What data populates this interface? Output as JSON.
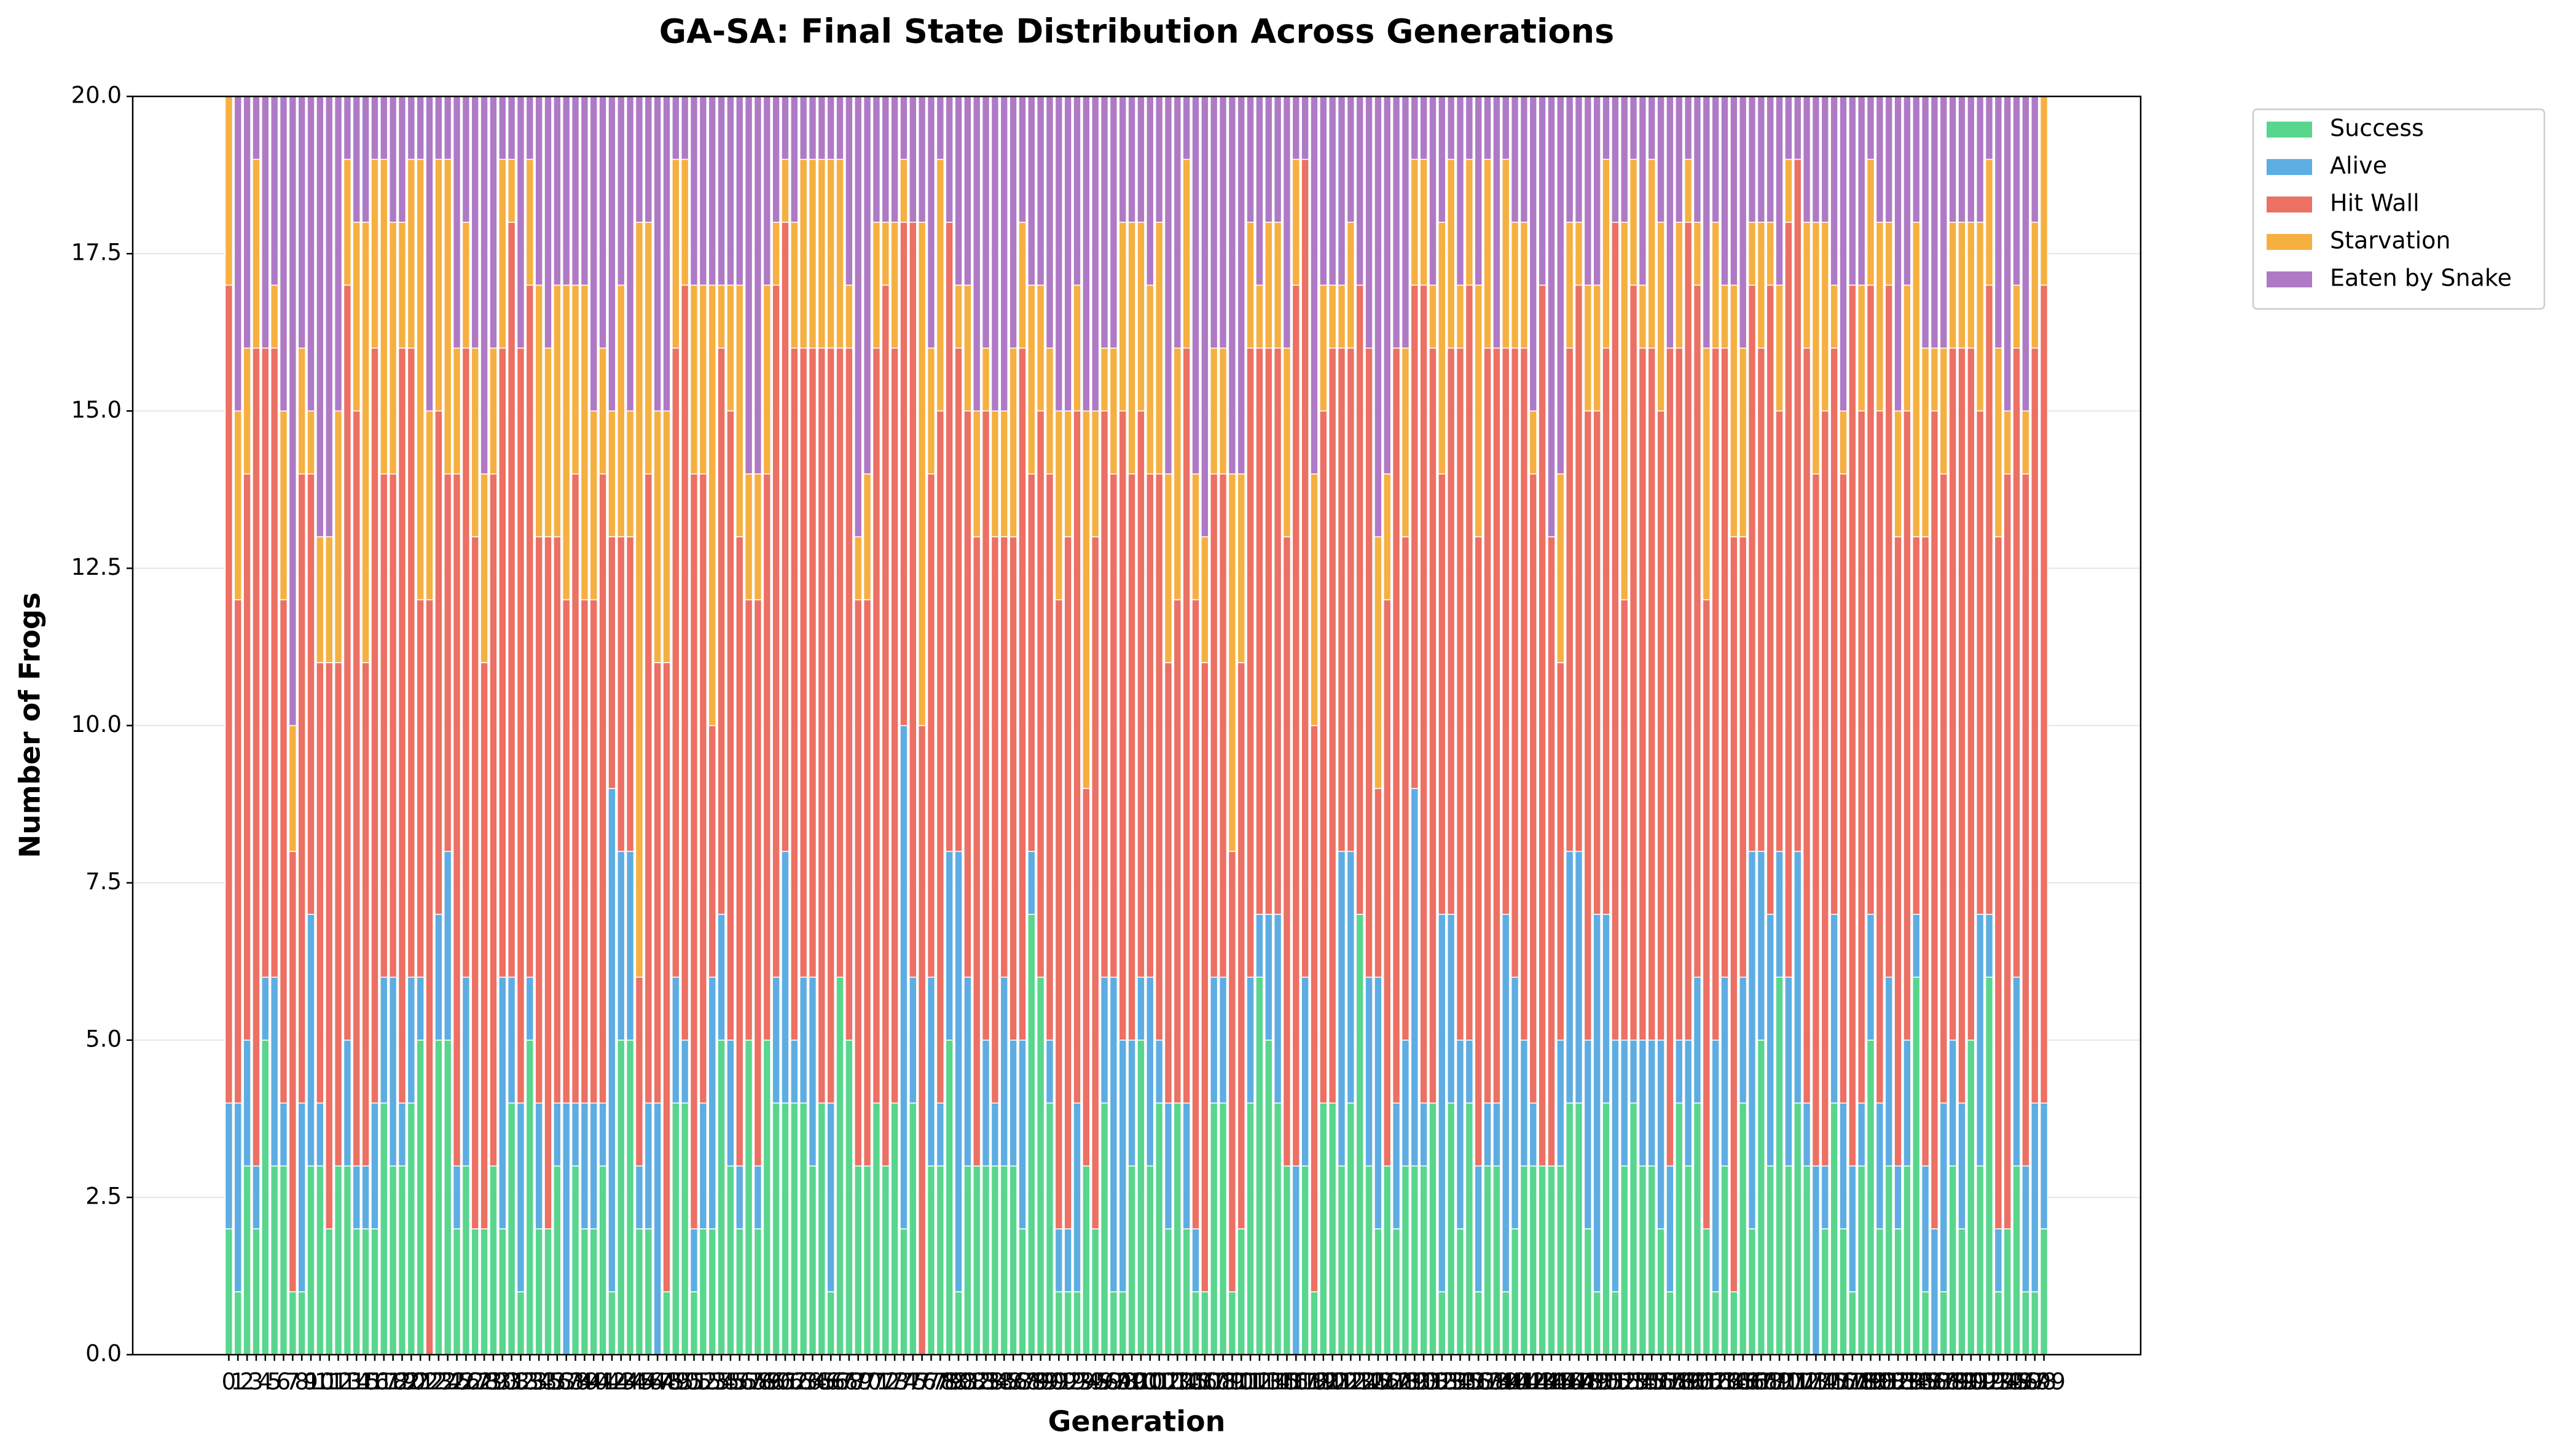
{
  "chart_data": {
    "type": "stacked_bar",
    "title": "GA-SA: Final State Distribution Across Generations",
    "x_label": "Generation",
    "y_label": "Number of Frogs",
    "categories": [
      0,
      1,
      2,
      3,
      4,
      5,
      6,
      7,
      8,
      9,
      10,
      11,
      12,
      13,
      14,
      15,
      16,
      17,
      18,
      19,
      20,
      21,
      22,
      23,
      24,
      25,
      26,
      27,
      28,
      29,
      30,
      31,
      32,
      33,
      34,
      35,
      36,
      37,
      38,
      39,
      40,
      41,
      42,
      43,
      44,
      45,
      46,
      47,
      48,
      49,
      50,
      51,
      52,
      53,
      54,
      55,
      56,
      57,
      58,
      59,
      60,
      61,
      62,
      63,
      64,
      65,
      66,
      67,
      68,
      69,
      70,
      71,
      72,
      73,
      74,
      75,
      76,
      77,
      78,
      79,
      80,
      81,
      82,
      83,
      84,
      85,
      86,
      87,
      88,
      89,
      90,
      91,
      92,
      93,
      94,
      95,
      96,
      97,
      98,
      99,
      100,
      101,
      102,
      103,
      104,
      105,
      106,
      107,
      108,
      109,
      110,
      111,
      112,
      113,
      114,
      115,
      116,
      117,
      118,
      119,
      120,
      121,
      122,
      123,
      124,
      125,
      126,
      127,
      128,
      129,
      130,
      131,
      132,
      133,
      134,
      135,
      136,
      137,
      138,
      139,
      140,
      141,
      142,
      143,
      144,
      145,
      146,
      147,
      148,
      149,
      150,
      151,
      152,
      153,
      154,
      155,
      156,
      157,
      158,
      159,
      160,
      161,
      162,
      163,
      164,
      165,
      166,
      167,
      168,
      169,
      170,
      171,
      172,
      173,
      174,
      175,
      176,
      177,
      178,
      179,
      180,
      181,
      182,
      183,
      184,
      185,
      186,
      187,
      188,
      189,
      190,
      191,
      192,
      193,
      194,
      195,
      196,
      197,
      198,
      199
    ],
    "series": [
      {
        "name": "Success",
        "color": "#58d68d",
        "values": [
          2,
          1,
          3,
          2,
          5,
          3,
          3,
          1,
          1,
          3,
          3,
          2,
          3,
          3,
          2,
          2,
          2,
          4,
          3,
          3,
          4,
          5,
          0,
          5,
          5,
          2,
          3,
          2,
          2,
          3,
          2,
          4,
          1,
          5,
          2,
          2,
          3,
          0,
          3,
          2,
          2,
          3,
          1,
          5,
          5,
          2,
          2,
          0,
          1,
          4,
          4,
          1,
          2,
          2,
          5,
          3,
          2,
          5,
          2,
          5,
          4,
          4,
          4,
          4,
          3,
          4,
          1,
          6,
          5,
          3,
          3,
          4,
          3,
          4,
          2,
          4,
          0,
          3,
          3,
          5,
          1,
          3,
          3,
          3,
          3,
          3,
          3,
          2,
          7,
          6,
          4,
          1,
          1,
          1,
          3,
          2,
          4,
          1,
          1,
          3,
          5,
          3,
          4,
          2,
          4,
          2,
          1,
          1,
          4,
          4,
          1,
          2,
          4,
          6,
          5,
          4,
          3,
          0,
          3,
          1,
          4,
          4,
          3,
          4,
          7,
          3,
          2,
          3,
          2,
          3,
          3,
          3,
          4,
          1,
          4,
          2,
          4,
          1,
          3,
          3,
          1,
          2,
          3,
          3,
          3,
          3,
          3,
          4,
          4,
          2,
          1,
          4,
          1,
          3,
          4,
          3,
          3,
          2,
          1,
          4,
          3,
          4,
          2,
          1,
          3,
          1,
          4,
          2,
          5,
          3,
          6,
          3,
          4,
          3,
          0,
          2,
          4,
          2,
          1,
          3,
          5,
          2,
          3,
          2,
          3,
          6,
          1,
          0,
          1,
          3,
          2,
          5,
          3,
          6,
          1,
          2,
          3,
          1,
          1,
          2
        ]
      },
      {
        "name": "Alive",
        "color": "#5dade2",
        "values": [
          2,
          3,
          2,
          1,
          1,
          3,
          1,
          0,
          3,
          4,
          1,
          0,
          0,
          2,
          1,
          1,
          2,
          2,
          3,
          1,
          2,
          1,
          0,
          2,
          3,
          1,
          3,
          0,
          0,
          0,
          4,
          2,
          3,
          1,
          2,
          0,
          1,
          4,
          1,
          2,
          2,
          1,
          8,
          3,
          3,
          1,
          2,
          4,
          0,
          2,
          1,
          1,
          2,
          4,
          2,
          2,
          1,
          0,
          1,
          0,
          2,
          4,
          1,
          2,
          3,
          0,
          3,
          0,
          0,
          0,
          0,
          0,
          0,
          0,
          8,
          2,
          0,
          3,
          1,
          3,
          7,
          3,
          0,
          2,
          1,
          3,
          2,
          3,
          1,
          0,
          1,
          1,
          1,
          3,
          0,
          0,
          2,
          5,
          4,
          2,
          1,
          3,
          1,
          2,
          0,
          2,
          1,
          0,
          2,
          2,
          0,
          0,
          2,
          1,
          2,
          3,
          0,
          3,
          3,
          0,
          0,
          0,
          5,
          4,
          0,
          3,
          4,
          0,
          2,
          2,
          6,
          1,
          0,
          6,
          3,
          3,
          1,
          2,
          1,
          1,
          6,
          4,
          2,
          1,
          0,
          0,
          2,
          4,
          4,
          3,
          6,
          3,
          4,
          2,
          1,
          2,
          2,
          3,
          2,
          1,
          2,
          2,
          0,
          4,
          3,
          0,
          2,
          6,
          3,
          4,
          2,
          3,
          4,
          1,
          3,
          1,
          3,
          2,
          2,
          1,
          2,
          2,
          3,
          1,
          2,
          1,
          2,
          2,
          3,
          2,
          2,
          0,
          4,
          1,
          1,
          0,
          3,
          2,
          3,
          2
        ]
      },
      {
        "name": "Hit Wall",
        "color": "#ec7063",
        "values": [
          13,
          8,
          9,
          13,
          10,
          10,
          8,
          7,
          10,
          7,
          7,
          9,
          8,
          12,
          12,
          8,
          12,
          8,
          8,
          12,
          10,
          6,
          12,
          8,
          6,
          11,
          10,
          11,
          9,
          11,
          10,
          12,
          12,
          11,
          9,
          11,
          9,
          8,
          10,
          8,
          8,
          10,
          4,
          5,
          5,
          3,
          10,
          7,
          10,
          10,
          12,
          12,
          10,
          4,
          9,
          10,
          10,
          7,
          9,
          9,
          11,
          10,
          11,
          10,
          10,
          12,
          12,
          10,
          11,
          9,
          9,
          12,
          14,
          12,
          8,
          12,
          10,
          8,
          11,
          10,
          8,
          9,
          10,
          10,
          9,
          7,
          8,
          11,
          6,
          9,
          9,
          10,
          11,
          11,
          6,
          11,
          9,
          8,
          10,
          9,
          9,
          8,
          9,
          7,
          8,
          12,
          10,
          10,
          8,
          8,
          7,
          9,
          10,
          9,
          9,
          9,
          10,
          14,
          13,
          9,
          11,
          12,
          8,
          8,
          10,
          10,
          3,
          9,
          12,
          8,
          8,
          13,
          12,
          7,
          9,
          11,
          12,
          10,
          12,
          12,
          9,
          10,
          11,
          10,
          14,
          10,
          6,
          8,
          9,
          10,
          8,
          9,
          13,
          7,
          12,
          11,
          11,
          10,
          13,
          11,
          13,
          11,
          10,
          11,
          10,
          12,
          7,
          9,
          8,
          10,
          7,
          12,
          11,
          12,
          11,
          12,
          9,
          10,
          14,
          11,
          10,
          11,
          11,
          10,
          10,
          6,
          10,
          13,
          10,
          11,
          12,
          11,
          8,
          10,
          11,
          12,
          10,
          11,
          12,
          13
        ]
      },
      {
        "name": "Starvation",
        "color": "#f5b041",
        "values": [
          3,
          3,
          2,
          3,
          0,
          1,
          3,
          2,
          2,
          1,
          2,
          2,
          4,
          2,
          3,
          7,
          3,
          5,
          4,
          2,
          3,
          7,
          3,
          4,
          5,
          2,
          2,
          3,
          3,
          2,
          3,
          1,
          0,
          2,
          4,
          3,
          4,
          5,
          3,
          5,
          3,
          2,
          2,
          4,
          2,
          12,
          4,
          4,
          4,
          3,
          2,
          3,
          3,
          7,
          1,
          2,
          4,
          2,
          2,
          3,
          1,
          1,
          2,
          3,
          3,
          3,
          3,
          3,
          1,
          1,
          2,
          2,
          1,
          2,
          1,
          0,
          8,
          2,
          4,
          0,
          1,
          2,
          2,
          1,
          2,
          2,
          3,
          2,
          3,
          2,
          2,
          3,
          2,
          2,
          6,
          2,
          1,
          2,
          3,
          4,
          3,
          3,
          4,
          3,
          4,
          3,
          2,
          2,
          2,
          2,
          6,
          3,
          2,
          1,
          2,
          2,
          3,
          2,
          0,
          4,
          2,
          1,
          1,
          2,
          0,
          0,
          4,
          2,
          0,
          3,
          2,
          2,
          1,
          4,
          3,
          1,
          2,
          4,
          3,
          0,
          3,
          2,
          2,
          1,
          0,
          0,
          3,
          2,
          1,
          2,
          2,
          3,
          0,
          6,
          2,
          1,
          3,
          3,
          0,
          2,
          1,
          1,
          4,
          2,
          1,
          4,
          3,
          1,
          2,
          1,
          2,
          1,
          0,
          2,
          4,
          3,
          1,
          1,
          0,
          2,
          2,
          3,
          1,
          2,
          2,
          5,
          3,
          1,
          2,
          2,
          2,
          2,
          3,
          2,
          3,
          1,
          1,
          1,
          2,
          3
        ]
      },
      {
        "name": "Eaten by Snake",
        "color": "#af7ac5",
        "values": [
          0,
          5,
          4,
          1,
          4,
          3,
          5,
          10,
          4,
          5,
          7,
          7,
          5,
          1,
          2,
          2,
          1,
          1,
          2,
          2,
          1,
          1,
          5,
          1,
          1,
          4,
          2,
          4,
          6,
          4,
          1,
          1,
          4,
          1,
          3,
          4,
          3,
          3,
          3,
          3,
          5,
          4,
          5,
          3,
          5,
          2,
          2,
          5,
          5,
          1,
          1,
          3,
          3,
          3,
          3,
          3,
          3,
          6,
          6,
          3,
          2,
          1,
          2,
          1,
          1,
          1,
          1,
          1,
          3,
          7,
          6,
          2,
          2,
          2,
          1,
          2,
          2,
          4,
          1,
          2,
          3,
          3,
          5,
          4,
          5,
          5,
          4,
          2,
          3,
          3,
          4,
          5,
          5,
          3,
          5,
          5,
          4,
          4,
          2,
          2,
          2,
          3,
          2,
          6,
          4,
          1,
          6,
          7,
          4,
          4,
          6,
          6,
          2,
          3,
          2,
          2,
          4,
          1,
          1,
          6,
          3,
          3,
          3,
          2,
          3,
          4,
          7,
          6,
          4,
          4,
          1,
          1,
          3,
          2,
          1,
          3,
          1,
          3,
          1,
          4,
          1,
          2,
          2,
          5,
          3,
          7,
          6,
          2,
          2,
          3,
          3,
          1,
          2,
          2,
          1,
          3,
          1,
          2,
          4,
          2,
          1,
          2,
          4,
          2,
          3,
          3,
          4,
          2,
          2,
          2,
          3,
          1,
          1,
          2,
          2,
          2,
          3,
          5,
          3,
          3,
          1,
          2,
          2,
          5,
          3,
          2,
          4,
          4,
          4,
          2,
          2,
          2,
          2,
          1,
          4,
          5,
          3,
          5,
          2,
          0
        ]
      }
    ],
    "ylim": [
      0,
      20
    ],
    "yticks": [
      {
        "value": 0,
        "label": "0.0"
      },
      2.5,
      {
        "value": 5,
        "label": "5.0"
      },
      7.5,
      {
        "value": 10,
        "label": "10.0"
      },
      12.5,
      {
        "value": 15,
        "label": "15.0"
      },
      17.5,
      {
        "value": 20,
        "label": "20.0"
      }
    ],
    "grid": true,
    "legend": "outside-upper-right"
  }
}
